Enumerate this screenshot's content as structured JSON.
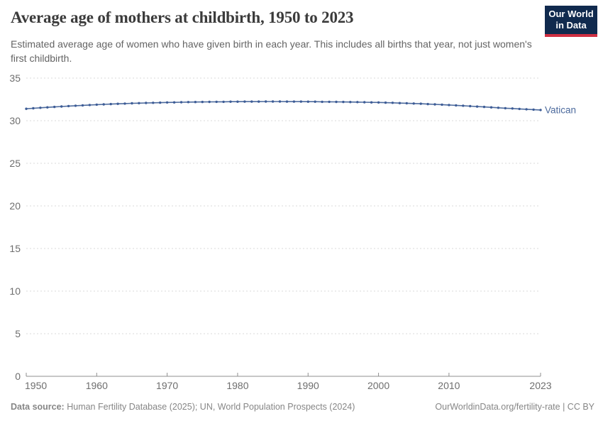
{
  "header": {
    "title": "Average age of mothers at childbirth, 1950 to 2023",
    "subtitle": "Estimated average age of women who have given birth in each year. This includes all births that year, not just women's first childbirth.",
    "logo": {
      "line1": "Our World",
      "line2": "in Data",
      "bg_color": "#102a4e",
      "accent_color": "#cf2f42"
    }
  },
  "footer": {
    "data_source_label": "Data source:",
    "data_source_value": "Human Fertility Database (2025); UN, World Population Prospects (2024)",
    "license": "OurWorldinData.org/fertility-rate | CC BY"
  },
  "chart_data": {
    "type": "line",
    "title": "Average age of mothers at childbirth, 1950 to 2023",
    "xlabel": "",
    "ylabel": "",
    "xlim": [
      1950,
      2023
    ],
    "ylim": [
      0,
      35
    ],
    "xticks": [
      1950,
      1960,
      1970,
      1980,
      1990,
      2000,
      2010,
      2023
    ],
    "yticks": [
      0,
      5,
      10,
      15,
      20,
      25,
      30,
      35
    ],
    "grid": "horizontal-dashed",
    "legend_position": "end-of-line-label",
    "years": [
      1950,
      1951,
      1952,
      1953,
      1954,
      1955,
      1956,
      1957,
      1958,
      1959,
      1960,
      1961,
      1962,
      1963,
      1964,
      1965,
      1966,
      1967,
      1968,
      1969,
      1970,
      1971,
      1972,
      1973,
      1974,
      1975,
      1976,
      1977,
      1978,
      1979,
      1980,
      1981,
      1982,
      1983,
      1984,
      1985,
      1986,
      1987,
      1988,
      1989,
      1990,
      1991,
      1992,
      1993,
      1994,
      1995,
      1996,
      1997,
      1998,
      1999,
      2000,
      2001,
      2002,
      2003,
      2004,
      2005,
      2006,
      2007,
      2008,
      2009,
      2010,
      2011,
      2012,
      2013,
      2014,
      2015,
      2016,
      2017,
      2018,
      2019,
      2020,
      2021,
      2022,
      2023
    ],
    "series": [
      {
        "name": "Vatican",
        "color": "#4c6a9d",
        "marker_color": "#3d5c96",
        "values": [
          31.4,
          31.46,
          31.52,
          31.57,
          31.62,
          31.67,
          31.72,
          31.76,
          31.8,
          31.84,
          31.88,
          31.92,
          31.95,
          31.98,
          32.01,
          32.04,
          32.06,
          32.08,
          32.1,
          32.12,
          32.14,
          32.15,
          32.17,
          32.18,
          32.19,
          32.2,
          32.21,
          32.22,
          32.22,
          32.23,
          32.23,
          32.24,
          32.24,
          32.24,
          32.25,
          32.25,
          32.25,
          32.24,
          32.24,
          32.24,
          32.23,
          32.23,
          32.22,
          32.22,
          32.21,
          32.2,
          32.19,
          32.18,
          32.17,
          32.15,
          32.14,
          32.12,
          32.1,
          32.07,
          32.05,
          32.02,
          31.99,
          31.95,
          31.92,
          31.88,
          31.84,
          31.8,
          31.76,
          31.71,
          31.66,
          31.62,
          31.57,
          31.52,
          31.47,
          31.43,
          31.38,
          31.34,
          31.3,
          31.26
        ]
      }
    ],
    "colors": {
      "gridline": "#d9d9d9",
      "axis": "#8f8f8f",
      "tick_label": "#6e6e6e"
    }
  }
}
